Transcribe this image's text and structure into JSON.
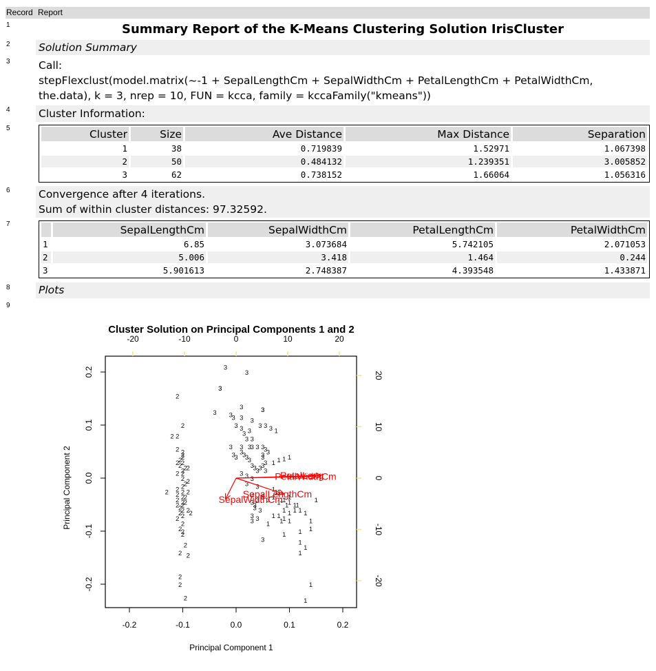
{
  "header": {
    "record_col": "Record",
    "report_col": "Report"
  },
  "rows": [
    {
      "num": "1",
      "title": "Summary Report of the K-Means Clustering Solution IrisCluster"
    },
    {
      "num": "2",
      "section": "Solution Summary"
    },
    {
      "num": "3",
      "call_label": "Call:",
      "call_line1": "stepFlexclust(model.matrix(~-1 + SepalLengthCm + SepalWidthCm + PetalLengthCm + PetalWidthCm,",
      "call_line2": "the.data), k = 3, nrep = 10, FUN = kcca, family = kccaFamily(\"kmeans\"))"
    },
    {
      "num": "4",
      "text": "Cluster Information:"
    },
    {
      "num": "5"
    },
    {
      "num": "6",
      "line1": "Convergence after 4 iterations.",
      "line2": "Sum of within cluster distances: 97.32592."
    },
    {
      "num": "7"
    },
    {
      "num": "8",
      "section": "Plots"
    },
    {
      "num": "9"
    }
  ],
  "cluster_info": {
    "columns": [
      "Cluster",
      "Size",
      "Ave Distance",
      "Max Distance",
      "Separation"
    ],
    "rows": [
      [
        "1",
        "38",
        "0.719839",
        "1.52971",
        "1.067398"
      ],
      [
        "2",
        "50",
        "0.484132",
        "1.239351",
        "3.005852"
      ],
      [
        "3",
        "62",
        "0.738152",
        "1.66064",
        "1.056316"
      ]
    ]
  },
  "centers": {
    "columns": [
      "",
      "SepalLengthCm",
      "SepalWidthCm",
      "PetalLengthCm",
      "PetalWidthCm"
    ],
    "rows": [
      [
        "1",
        "6.85",
        "3.073684",
        "5.742105",
        "2.071053"
      ],
      [
        "2",
        "5.006",
        "3.418",
        "1.464",
        "0.244"
      ],
      [
        "3",
        "5.901613",
        "2.748387",
        "4.393548",
        "1.433871"
      ]
    ]
  },
  "chart_data": {
    "type": "scatter",
    "title": "Cluster Solution on Principal Components 1 and 2",
    "xlabel": "Principal Component 1",
    "ylabel": "Principal Component 2",
    "xlim": [
      -0.245,
      0.225
    ],
    "ylim": [
      -0.245,
      0.23
    ],
    "x_ticks": [
      "-0.2",
      "-0.1",
      "0.0",
      "0.1",
      "0.2"
    ],
    "y_ticks": [
      "-0.2",
      "-0.1",
      "0.0",
      "0.1",
      "0.2"
    ],
    "top_ticks": [
      "-20",
      "-10",
      "0",
      "10",
      "20"
    ],
    "right_ticks": [
      "-20",
      "-10",
      "0",
      "10",
      "20"
    ],
    "marker": "cluster number",
    "series": [
      {
        "name": "1",
        "points": [
          [
            0.07,
            0.03
          ],
          [
            0.08,
            0.035
          ],
          [
            0.09,
            0.037
          ],
          [
            0.1,
            0.04
          ],
          [
            0.07,
            -0.02
          ],
          [
            0.08,
            -0.025
          ],
          [
            0.085,
            -0.04
          ],
          [
            0.1,
            -0.045
          ],
          [
            0.11,
            -0.05
          ],
          [
            0.09,
            -0.06
          ],
          [
            0.1,
            -0.065
          ],
          [
            0.11,
            -0.06
          ],
          [
            0.12,
            -0.06
          ],
          [
            0.13,
            -0.065
          ],
          [
            0.07,
            -0.07
          ],
          [
            0.08,
            -0.07
          ],
          [
            0.09,
            -0.075
          ],
          [
            0.085,
            -0.08
          ],
          [
            0.14,
            -0.08
          ],
          [
            0.06,
            -0.085
          ],
          [
            0.1,
            -0.08
          ],
          [
            0.12,
            -0.1
          ],
          [
            0.14,
            -0.095
          ],
          [
            0.12,
            -0.12
          ],
          [
            0.09,
            -0.105
          ],
          [
            0.15,
            -0.04
          ],
          [
            0.13,
            -0.13
          ],
          [
            0.12,
            -0.14
          ],
          [
            0.14,
            -0.2
          ],
          [
            0.13,
            -0.23
          ],
          [
            0.075,
            -0.025
          ],
          [
            0.08,
            -0.045
          ],
          [
            0.095,
            -0.05
          ],
          [
            0.075,
            0.09
          ],
          [
            0.07,
            -0.035
          ],
          [
            0.1,
            -0.035
          ],
          [
            0.115,
            -0.05
          ],
          [
            0.09,
            -0.04
          ]
        ]
      },
      {
        "name": "2",
        "points": [
          [
            -0.11,
            0.155
          ],
          [
            -0.1,
            0.1
          ],
          [
            -0.12,
            0.08
          ],
          [
            -0.11,
            0.08
          ],
          [
            -0.11,
            0.055
          ],
          [
            -0.1,
            0.05
          ],
          [
            -0.1,
            0.04
          ],
          [
            -0.105,
            0.035
          ],
          [
            -0.1,
            0.03
          ],
          [
            -0.11,
            0.03
          ],
          [
            -0.105,
            0.025
          ],
          [
            -0.09,
            0.02
          ],
          [
            -0.1,
            0.01
          ],
          [
            -0.11,
            0.01
          ],
          [
            -0.1,
            0.0
          ],
          [
            -0.09,
            -0.005
          ],
          [
            -0.13,
            -0.025
          ],
          [
            -0.11,
            -0.02
          ],
          [
            -0.1,
            -0.025
          ],
          [
            -0.09,
            -0.025
          ],
          [
            -0.1,
            -0.035
          ],
          [
            -0.11,
            -0.04
          ],
          [
            -0.1,
            -0.045
          ],
          [
            -0.11,
            -0.05
          ],
          [
            -0.105,
            -0.055
          ],
          [
            -0.1,
            -0.06
          ],
          [
            -0.09,
            -0.06
          ],
          [
            -0.085,
            -0.065
          ],
          [
            -0.1,
            -0.07
          ],
          [
            -0.11,
            -0.075
          ],
          [
            -0.1,
            -0.085
          ],
          [
            -0.105,
            -0.095
          ],
          [
            -0.1,
            -0.1
          ],
          [
            -0.1,
            -0.105
          ],
          [
            -0.095,
            -0.125
          ],
          [
            -0.105,
            -0.14
          ],
          [
            -0.09,
            -0.145
          ],
          [
            -0.105,
            -0.185
          ],
          [
            -0.105,
            -0.2
          ],
          [
            -0.095,
            -0.225
          ],
          [
            -0.1,
            -0.015
          ],
          [
            -0.095,
            -0.01
          ],
          [
            -0.1,
            0.045
          ],
          [
            -0.095,
            0.02
          ],
          [
            -0.105,
            -0.065
          ],
          [
            -0.095,
            -0.045
          ],
          [
            -0.1,
            -0.05
          ],
          [
            -0.11,
            -0.03
          ],
          [
            -0.095,
            -0.035
          ],
          [
            -0.1,
            0.015
          ]
        ]
      },
      {
        "name": "3",
        "points": [
          [
            -0.02,
            0.21
          ],
          [
            0.02,
            0.2
          ],
          [
            -0.03,
            0.17
          ],
          [
            -0.03,
            0.17
          ],
          [
            -0.04,
            0.125
          ],
          [
            0.01,
            0.135
          ],
          [
            0.05,
            0.13
          ],
          [
            0.05,
            0.13
          ],
          [
            -0.01,
            0.12
          ],
          [
            -0.005,
            0.115
          ],
          [
            0.01,
            0.115
          ],
          [
            0.03,
            0.11
          ],
          [
            0.045,
            0.1
          ],
          [
            0.055,
            0.1
          ],
          [
            0.065,
            0.095
          ],
          [
            0.0,
            0.1
          ],
          [
            0.01,
            0.095
          ],
          [
            0.025,
            0.09
          ],
          [
            0.015,
            0.085
          ],
          [
            0.03,
            0.075
          ],
          [
            -0.01,
            0.06
          ],
          [
            0.01,
            0.06
          ],
          [
            0.025,
            0.06
          ],
          [
            0.03,
            0.06
          ],
          [
            0.05,
            0.06
          ],
          [
            0.055,
            0.055
          ],
          [
            -0.005,
            0.045
          ],
          [
            0.01,
            0.05
          ],
          [
            0.015,
            0.045
          ],
          [
            0.05,
            0.045
          ],
          [
            0.0,
            0.04
          ],
          [
            0.02,
            0.04
          ],
          [
            0.05,
            0.04
          ],
          [
            0.055,
            0.03
          ],
          [
            0.03,
            0.025
          ],
          [
            0.035,
            0.02
          ],
          [
            0.045,
            0.02
          ],
          [
            0.04,
            0.015
          ],
          [
            0.01,
            0.01
          ],
          [
            0.02,
            0.005
          ],
          [
            0.03,
            0.0
          ],
          [
            0.02,
            -0.01
          ],
          [
            0.04,
            -0.015
          ],
          [
            0.03,
            -0.03
          ],
          [
            0.04,
            -0.04
          ],
          [
            0.05,
            -0.035
          ],
          [
            0.03,
            -0.045
          ],
          [
            0.035,
            -0.05
          ],
          [
            0.035,
            -0.055
          ],
          [
            0.04,
            -0.075
          ],
          [
            0.03,
            -0.08
          ],
          [
            0.05,
            -0.115
          ],
          [
            0.03,
            -0.07
          ],
          [
            0.045,
            -0.06
          ],
          [
            0.05,
            -0.03
          ],
          [
            0.06,
            -0.04
          ],
          [
            0.055,
            0.015
          ],
          [
            0.05,
            0.025
          ],
          [
            0.025,
            0.035
          ],
          [
            0.06,
            0.05
          ],
          [
            0.04,
            0.06
          ],
          [
            0.02,
            0.075
          ]
        ]
      }
    ],
    "biplot_arrows": [
      {
        "label": "PetalLength",
        "visible_label": "PetalLeng",
        "end": [
          0.16,
          0.005
        ]
      },
      {
        "label": "PetalWidthCm",
        "end": [
          0.15,
          0.003
        ]
      },
      {
        "label": "SepalWidthCm",
        "end": [
          -0.02,
          -0.04
        ]
      },
      {
        "label": "SepalLengthCm",
        "end": [
          0.09,
          -0.03
        ]
      }
    ],
    "arrow_color": "#ff0000",
    "secondary_axis_color": "#f0e68c"
  }
}
